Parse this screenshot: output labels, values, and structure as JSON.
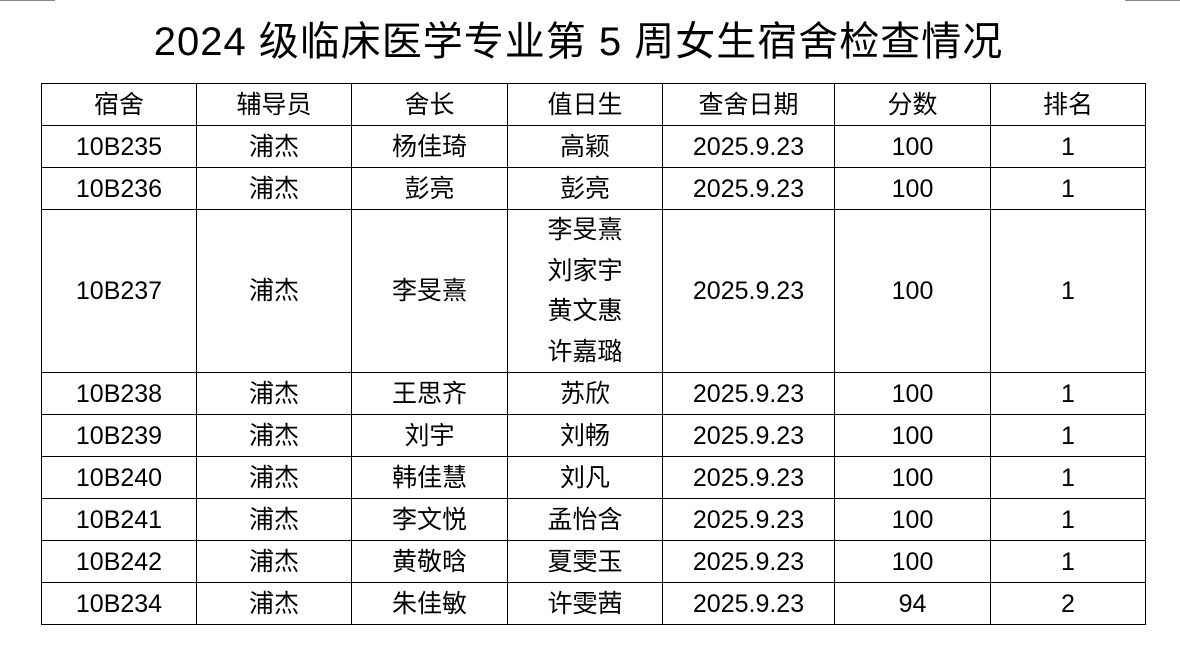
{
  "title": "2024 级临床医学专业第 5 周女生宿舍检查情况",
  "columns": [
    "宿舍",
    "辅导员",
    "舍长",
    "值日生",
    "查舍日期",
    "分数",
    "排名"
  ],
  "rows": [
    {
      "dorm": "10B235",
      "counselor": "浦杰",
      "leader": "杨佳琦",
      "duty": [
        "高颖"
      ],
      "date": "2025.9.23",
      "score": "100",
      "rank": "1"
    },
    {
      "dorm": "10B236",
      "counselor": "浦杰",
      "leader": "彭亮",
      "duty": [
        "彭亮"
      ],
      "date": "2025.9.23",
      "score": "100",
      "rank": "1"
    },
    {
      "dorm": "10B237",
      "counselor": "浦杰",
      "leader": "李旻熹",
      "duty": [
        "李旻熹",
        "刘家宇",
        "黄文惠",
        "许嘉璐"
      ],
      "date": "2025.9.23",
      "score": "100",
      "rank": "1"
    },
    {
      "dorm": "10B238",
      "counselor": "浦杰",
      "leader": "王思齐",
      "duty": [
        "苏欣"
      ],
      "date": "2025.9.23",
      "score": "100",
      "rank": "1"
    },
    {
      "dorm": "10B239",
      "counselor": "浦杰",
      "leader": "刘宇",
      "duty": [
        "刘畅"
      ],
      "date": "2025.9.23",
      "score": "100",
      "rank": "1"
    },
    {
      "dorm": "10B240",
      "counselor": "浦杰",
      "leader": "韩佳慧",
      "duty": [
        "刘凡"
      ],
      "date": "2025.9.23",
      "score": "100",
      "rank": "1"
    },
    {
      "dorm": "10B241",
      "counselor": "浦杰",
      "leader": "李文悦",
      "duty": [
        "孟怡含"
      ],
      "date": "2025.9.23",
      "score": "100",
      "rank": "1"
    },
    {
      "dorm": "10B242",
      "counselor": "浦杰",
      "leader": "黄敬晗",
      "duty": [
        "夏雯玉"
      ],
      "date": "2025.9.23",
      "score": "100",
      "rank": "1"
    },
    {
      "dorm": "10B234",
      "counselor": "浦杰",
      "leader": "朱佳敏",
      "duty": [
        "许雯茜"
      ],
      "date": "2025.9.23",
      "score": "94",
      "rank": "2"
    }
  ]
}
